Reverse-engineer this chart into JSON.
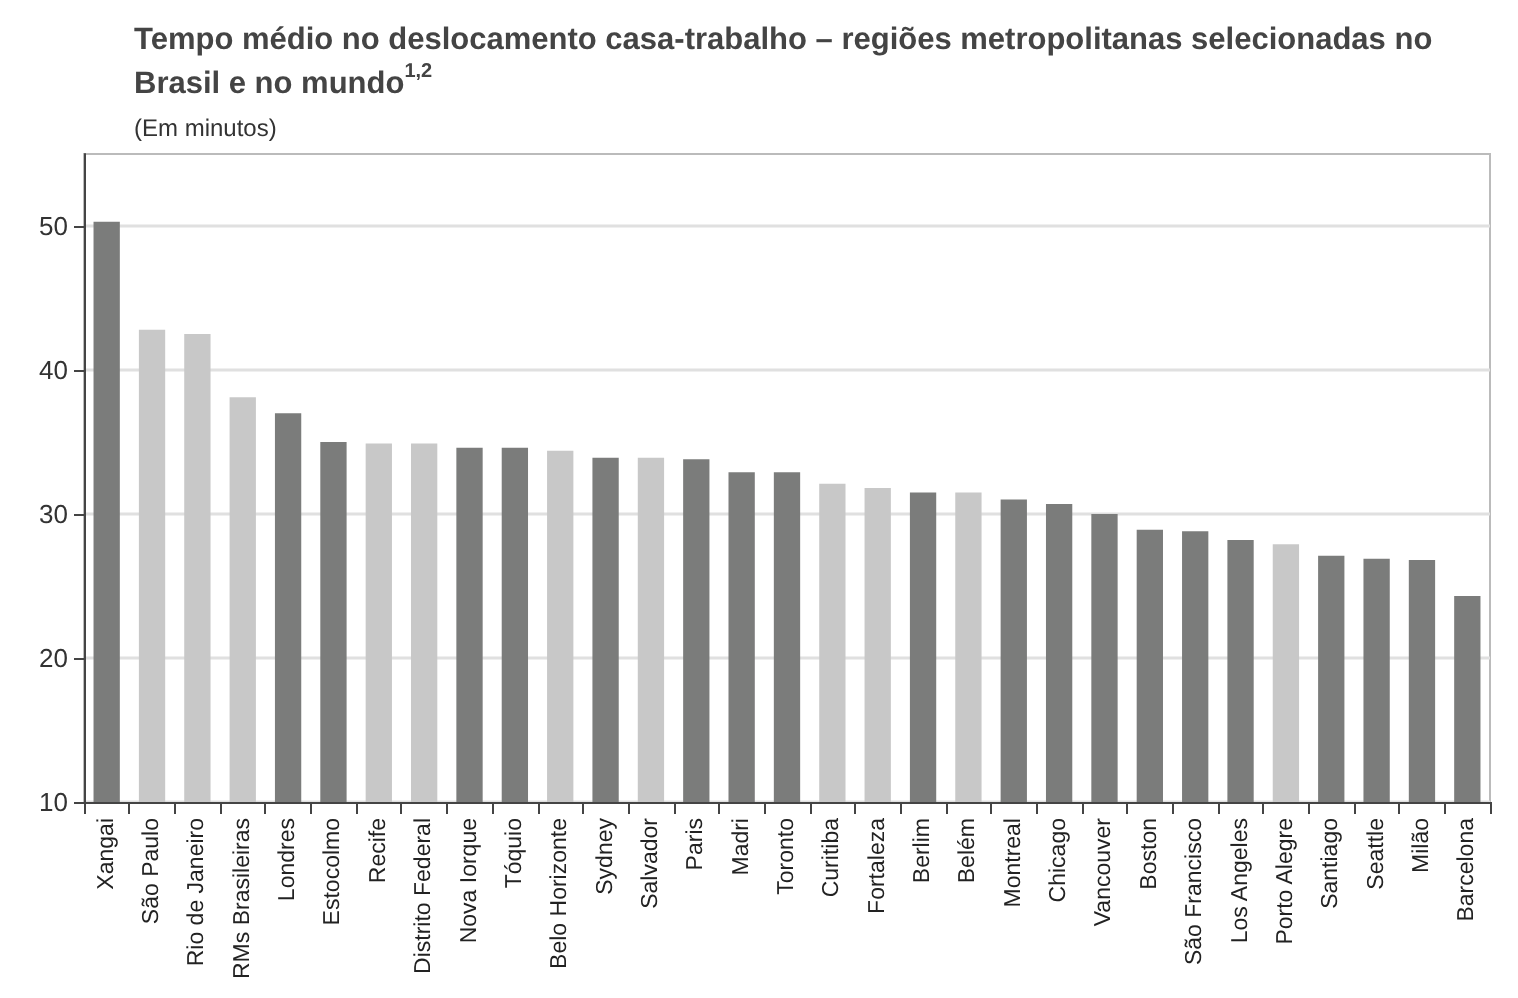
{
  "chart_data": {
    "type": "bar",
    "title": "Tempo médio no deslocamento casa-trabalho – regiões metropolitanas selecionadas no Brasil e no mundo$^{1,2}$",
    "subtitle": "(Em minutos)",
    "categories": [
      "Xangai",
      "São Paulo",
      "Rio de Janeiro",
      "RMs Brasileiras",
      "Londres",
      "Estocolmo",
      "Recife",
      "Distrito Federal",
      "Nova Iorque",
      "Tóquio",
      "Belo Horizonte",
      "Sydney",
      "Salvador",
      "Paris",
      "Madri",
      "Toronto",
      "Curitiba",
      "Fortaleza",
      "Berlim",
      "Belém",
      "Montreal",
      "Chicago",
      "Vancouver",
      "Boston",
      "São Francisco",
      "Los Angeles",
      "Porto Alegre",
      "Santiago",
      "Seattle",
      "Milão",
      "Barcelona"
    ],
    "values": [
      50.3,
      42.8,
      42.5,
      38.1,
      37.0,
      35.0,
      34.9,
      34.9,
      34.6,
      34.6,
      34.4,
      33.9,
      33.9,
      33.8,
      32.9,
      32.9,
      32.1,
      31.8,
      31.5,
      31.5,
      31.0,
      30.7,
      30.0,
      28.9,
      28.8,
      28.2,
      27.9,
      27.1,
      26.9,
      26.8,
      24.3
    ],
    "colors": [
      "#7b7c7b",
      "#c8c8c8",
      "#c8c8c8",
      "#c8c8c8",
      "#7b7c7b",
      "#7b7c7b",
      "#c8c8c8",
      "#c8c8c8",
      "#7b7c7b",
      "#7b7c7b",
      "#c8c8c8",
      "#7b7c7b",
      "#c8c8c8",
      "#7b7c7b",
      "#7b7c7b",
      "#7b7c7b",
      "#c8c8c8",
      "#c8c8c8",
      "#7b7c7b",
      "#c8c8c8",
      "#7b7c7b",
      "#7b7c7b",
      "#7b7c7b",
      "#7b7c7b",
      "#7b7c7b",
      "#7b7c7b",
      "#c8c8c8",
      "#7b7c7b",
      "#7b7c7b",
      "#7b7c7b",
      "#7b7c7b"
    ],
    "ylim": [
      10,
      55
    ],
    "yticks": [
      10,
      20,
      30,
      40,
      50
    ],
    "grid": "y"
  }
}
